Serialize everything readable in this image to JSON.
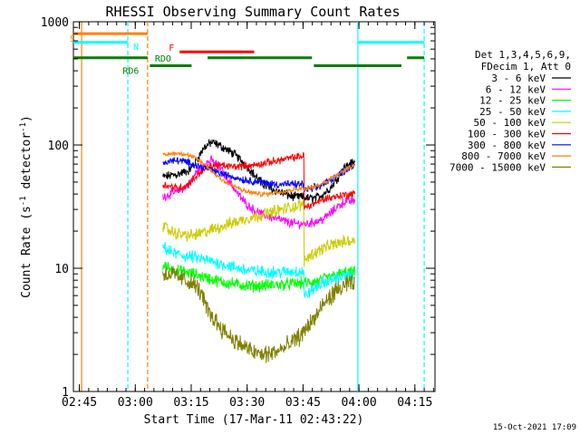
{
  "chart_data": {
    "type": "line",
    "title": "RHESSI Observing Summary Count Rates",
    "xlabel": "Start Time (17-Mar-11 02:43:22)",
    "ylabel_main": "Count Rate (s",
    "ylabel_exp1": "-1",
    "ylabel_mid": " detector",
    "ylabel_exp2": "-1",
    "ylabel_end": ")",
    "y_scale": "log",
    "ylim": [
      1,
      1000
    ],
    "xlim_minutes": [
      0,
      97
    ],
    "x_ticks": [
      {
        "label": "02:45",
        "minute": 1.6
      },
      {
        "label": "03:00",
        "minute": 16.6
      },
      {
        "label": "03:15",
        "minute": 31.6
      },
      {
        "label": "03:30",
        "minute": 46.6
      },
      {
        "label": "03:45",
        "minute": 61.6
      },
      {
        "label": "04:00",
        "minute": 76.6
      },
      {
        "label": "04:15",
        "minute": 91.6
      }
    ],
    "y_ticks": [
      {
        "label": "1",
        "value": 1
      },
      {
        "label": "10",
        "value": 10
      },
      {
        "label": "100",
        "value": 100
      },
      {
        "label": "1000",
        "value": 1000
      }
    ],
    "legend_header": [
      "Det 1,3,4,5,6,9,",
      "FDecim 1, Att 0"
    ],
    "series": [
      {
        "name": "3 - 6 keV",
        "color": "#000000",
        "noise": 0.03,
        "points": [
          [
            24,
            55
          ],
          [
            28,
            58
          ],
          [
            31,
            62
          ],
          [
            33,
            75
          ],
          [
            35,
            95
          ],
          [
            37,
            105
          ],
          [
            39,
            100
          ],
          [
            41,
            92
          ],
          [
            43,
            85
          ],
          [
            45,
            75
          ],
          [
            47,
            65
          ],
          [
            49,
            55
          ],
          [
            51,
            48
          ],
          [
            53,
            44
          ],
          [
            55,
            42
          ],
          [
            57,
            40
          ],
          [
            59,
            38
          ],
          [
            61,
            38
          ],
          [
            63,
            37
          ],
          [
            65,
            37
          ],
          [
            67,
            40
          ],
          [
            69,
            45
          ],
          [
            71,
            55
          ],
          [
            72.5,
            65
          ],
          [
            74,
            70
          ],
          [
            75.5,
            72
          ]
        ]
      },
      {
        "name": "6 - 12 keV",
        "color": "#ff00ff",
        "noise": 0.03,
        "points": [
          [
            24,
            38
          ],
          [
            28,
            42
          ],
          [
            31,
            48
          ],
          [
            33,
            60
          ],
          [
            35,
            70
          ],
          [
            37,
            75
          ],
          [
            39,
            68
          ],
          [
            41,
            55
          ],
          [
            43,
            45
          ],
          [
            45,
            37
          ],
          [
            47,
            32
          ],
          [
            49,
            29
          ],
          [
            51,
            27
          ],
          [
            53,
            26
          ],
          [
            55,
            25
          ],
          [
            57,
            24
          ],
          [
            59,
            23
          ],
          [
            61,
            23
          ],
          [
            63,
            23
          ],
          [
            65,
            24
          ],
          [
            67,
            25
          ],
          [
            69,
            28
          ],
          [
            71,
            32
          ],
          [
            73,
            35
          ],
          [
            75.5,
            35
          ]
        ]
      },
      {
        "name": "12 - 25 keV",
        "color": "#00ff00",
        "noise": 0.04,
        "points": [
          [
            24,
            10.5
          ],
          [
            26,
            10
          ],
          [
            28,
            9.5
          ],
          [
            30,
            9.3
          ],
          [
            32,
            9
          ],
          [
            35,
            8.5
          ],
          [
            38,
            8
          ],
          [
            41,
            7.6
          ],
          [
            44,
            7.4
          ],
          [
            47,
            7.2
          ],
          [
            50,
            7.2
          ],
          [
            53,
            7.3
          ],
          [
            56,
            7.4
          ],
          [
            59,
            7.5
          ],
          [
            62,
            7.6
          ],
          [
            64,
            7.7
          ],
          [
            66,
            7.9
          ],
          [
            68,
            8.3
          ],
          [
            70,
            8.7
          ],
          [
            72,
            9.0
          ],
          [
            74,
            9.3
          ],
          [
            75.5,
            9.2
          ]
        ]
      },
      {
        "name": "25 - 50 keV",
        "color": "#00ffff",
        "noise": 0.04,
        "points": [
          [
            24,
            15
          ],
          [
            26,
            13.5
          ],
          [
            28,
            13
          ],
          [
            30,
            12.5
          ],
          [
            32,
            12.3
          ],
          [
            35,
            11.8
          ],
          [
            38,
            11.2
          ],
          [
            41,
            10.6
          ],
          [
            44,
            10.0
          ],
          [
            47,
            9.6
          ],
          [
            50,
            9.4
          ],
          [
            53,
            9.3
          ],
          [
            56,
            9.3
          ],
          [
            59,
            9.4
          ],
          [
            61.9,
            9.5
          ],
          [
            62,
            5.8
          ],
          [
            63,
            6.3
          ],
          [
            64.5,
            6.8
          ],
          [
            66,
            7.3
          ],
          [
            68,
            7.8
          ],
          [
            70,
            8.2
          ],
          [
            72,
            8.6
          ],
          [
            74,
            8.7
          ],
          [
            75.5,
            8.5
          ]
        ]
      },
      {
        "name": "50 - 100 keV",
        "color": "#cccc00",
        "noise": 0.04,
        "points": [
          [
            24,
            22
          ],
          [
            26,
            20
          ],
          [
            28,
            19
          ],
          [
            30,
            18.5
          ],
          [
            32,
            18.5
          ],
          [
            34,
            19
          ],
          [
            36,
            20
          ],
          [
            38,
            21
          ],
          [
            40,
            22
          ],
          [
            42,
            23
          ],
          [
            44,
            24
          ],
          [
            46,
            25
          ],
          [
            48,
            26
          ],
          [
            50,
            27
          ],
          [
            52,
            28
          ],
          [
            54,
            29
          ],
          [
            56,
            30
          ],
          [
            58,
            31
          ],
          [
            60,
            32
          ],
          [
            61.9,
            33
          ],
          [
            62,
            11.5
          ],
          [
            63,
            12.5
          ],
          [
            65,
            13.5
          ],
          [
            67,
            14.5
          ],
          [
            69,
            15.3
          ],
          [
            71,
            16.0
          ],
          [
            73,
            16.5
          ],
          [
            75.5,
            16.8
          ]
        ]
      },
      {
        "name": "100 - 300 keV",
        "color": "#ff0000",
        "noise": 0.025,
        "points": [
          [
            24,
            48
          ],
          [
            26,
            46
          ],
          [
            28,
            45
          ],
          [
            30,
            46
          ],
          [
            32,
            52
          ],
          [
            34,
            60
          ],
          [
            36,
            66
          ],
          [
            38,
            68
          ],
          [
            40,
            68
          ],
          [
            42,
            67
          ],
          [
            44,
            67
          ],
          [
            46,
            68
          ],
          [
            48,
            68
          ],
          [
            50,
            70
          ],
          [
            52,
            72
          ],
          [
            54,
            74
          ],
          [
            56,
            76
          ],
          [
            58,
            78
          ],
          [
            60,
            80
          ],
          [
            61.9,
            82
          ],
          [
            62,
            31
          ],
          [
            64,
            33
          ],
          [
            66,
            35
          ],
          [
            68,
            37
          ],
          [
            70,
            38
          ],
          [
            72,
            39
          ],
          [
            74,
            40
          ],
          [
            75.5,
            40
          ]
        ]
      },
      {
        "name": "300 - 800 keV",
        "color": "#0000ff",
        "noise": 0.025,
        "points": [
          [
            24,
            72
          ],
          [
            26,
            74
          ],
          [
            28,
            75
          ],
          [
            30,
            73
          ],
          [
            32,
            70
          ],
          [
            34,
            67
          ],
          [
            36,
            64
          ],
          [
            38,
            61
          ],
          [
            40,
            58
          ],
          [
            42,
            56
          ],
          [
            44,
            54
          ],
          [
            46,
            52
          ],
          [
            48,
            51
          ],
          [
            50,
            50
          ],
          [
            52,
            49
          ],
          [
            54,
            48
          ],
          [
            56,
            48
          ],
          [
            58,
            48
          ],
          [
            60,
            48
          ],
          [
            61.9,
            48
          ],
          [
            62,
            43
          ],
          [
            64,
            44
          ],
          [
            66,
            46
          ],
          [
            68,
            50
          ],
          [
            70,
            55
          ],
          [
            72,
            60
          ],
          [
            74,
            66
          ],
          [
            75.5,
            70
          ]
        ]
      },
      {
        "name": "800 - 7000 keV",
        "color": "#ff8000",
        "noise": 0.015,
        "points": [
          [
            24,
            82
          ],
          [
            26,
            85
          ],
          [
            28,
            86
          ],
          [
            30,
            84
          ],
          [
            32,
            80
          ],
          [
            34,
            74
          ],
          [
            36,
            66
          ],
          [
            38,
            58
          ],
          [
            40,
            52
          ],
          [
            42,
            48
          ],
          [
            44,
            45
          ],
          [
            46,
            42
          ],
          [
            48,
            41
          ],
          [
            50,
            40
          ],
          [
            52,
            40
          ],
          [
            54,
            41
          ],
          [
            56,
            42
          ],
          [
            58,
            43
          ],
          [
            60,
            44
          ],
          [
            61.9,
            45
          ],
          [
            62,
            44
          ],
          [
            64,
            45
          ],
          [
            66,
            47
          ],
          [
            68,
            51
          ],
          [
            70,
            56
          ],
          [
            72,
            61
          ],
          [
            74,
            66
          ],
          [
            75.5,
            68
          ]
        ]
      },
      {
        "name": "7000 - 15000 keV",
        "color": "#808000",
        "noise": 0.06,
        "points": [
          [
            24,
            9
          ],
          [
            26,
            9
          ],
          [
            28,
            8.5
          ],
          [
            30,
            8
          ],
          [
            32,
            7.5
          ],
          [
            34,
            6.5
          ],
          [
            35,
            5.5
          ],
          [
            36,
            4.5
          ],
          [
            38,
            3.8
          ],
          [
            40,
            3.2
          ],
          [
            42,
            2.8
          ],
          [
            44,
            2.5
          ],
          [
            46,
            2.3
          ],
          [
            48,
            2.1
          ],
          [
            50,
            2.0
          ],
          [
            52,
            2.0
          ],
          [
            54,
            2.1
          ],
          [
            56,
            2.2
          ],
          [
            58,
            2.4
          ],
          [
            60,
            2.7
          ],
          [
            61.9,
            3.0
          ],
          [
            62,
            3.2
          ],
          [
            64,
            3.7
          ],
          [
            66,
            4.5
          ],
          [
            68,
            5.5
          ],
          [
            70,
            6.3
          ],
          [
            72,
            7.0
          ],
          [
            74,
            7.5
          ],
          [
            75.5,
            7.4
          ]
        ]
      }
    ],
    "vertical_lines": [
      {
        "minute": 2.2,
        "color": "#ff8000",
        "style": "solid"
      },
      {
        "minute": 14.6,
        "color": "#00ffff",
        "style": "dashed"
      },
      {
        "minute": 19.9,
        "color": "#ff8000",
        "style": "dashed"
      },
      {
        "minute": 76.3,
        "color": "#00ffff",
        "style": "solid"
      },
      {
        "minute": 94.1,
        "color": "#00ffff",
        "style": "dashed"
      }
    ],
    "flag_bars": [
      {
        "label": "S",
        "color": "#ff8000",
        "value": 800,
        "segments": [
          [
            0,
            19.9
          ]
        ]
      },
      {
        "label": "N",
        "color": "#00ffff",
        "value": 680,
        "segments": [
          [
            0,
            14.6
          ],
          [
            76.3,
            94.1
          ]
        ]
      },
      {
        "label": "F",
        "color": "#ff0000",
        "value": 570,
        "segments": [
          [
            28.5,
            48.5
          ]
        ]
      },
      {
        "label": "RDO",
        "color": "#007f00",
        "value": 510,
        "segments": [
          [
            0,
            19.9
          ],
          [
            36.0,
            64.0
          ],
          [
            89.5,
            94.1
          ]
        ]
      },
      {
        "label": "RD6",
        "color": "#007f00",
        "value": 440,
        "segments": [
          [
            20.5,
            31.7
          ],
          [
            64.5,
            88.0
          ]
        ]
      }
    ],
    "timestamp": "15-Oct-2021 17:09"
  }
}
